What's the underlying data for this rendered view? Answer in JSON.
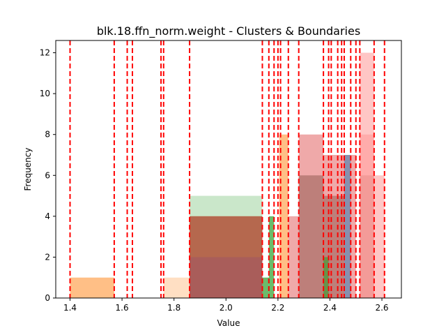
{
  "chart_data": {
    "type": "bar",
    "title": "blk.18.ffn_norm.weight - Clusters & Boundaries",
    "xlabel": "Value",
    "ylabel": "Frequency",
    "xlim": [
      1.345,
      2.675
    ],
    "ylim": [
      0,
      12.6
    ],
    "xticks": [
      "1.4",
      "1.6",
      "1.8",
      "2.0",
      "2.2",
      "2.4",
      "2.6"
    ],
    "yticks": [
      "0",
      "2",
      "4",
      "6",
      "8",
      "10",
      "12"
    ],
    "grid": false,
    "legend": "none",
    "boundary_color": "#ff0000",
    "boundaries": [
      1.4,
      1.57,
      1.62,
      1.64,
      1.75,
      1.76,
      1.86,
      2.14,
      2.165,
      2.185,
      2.2,
      2.21,
      2.24,
      2.28,
      2.375,
      2.395,
      2.405,
      2.43,
      2.445,
      2.455,
      2.48,
      2.5,
      2.515,
      2.57,
      2.61
    ],
    "series": [
      {
        "color": "#2ca02c",
        "opacity": 0.25,
        "bars": [
          {
            "x0": 1.86,
            "x1": 2.14,
            "y": 5
          }
        ]
      },
      {
        "color": "#ff7f0e",
        "opacity": 0.25,
        "bars": [
          {
            "x0": 1.76,
            "x1": 1.86,
            "y": 1
          }
        ]
      },
      {
        "color": "#ff7f0e",
        "opacity": 0.5,
        "bars": [
          {
            "x0": 1.4,
            "x1": 1.57,
            "y": 1
          },
          {
            "x0": 1.86,
            "x1": 2.14,
            "y": 4
          },
          {
            "x0": 2.205,
            "x1": 2.24,
            "y": 8
          }
        ]
      },
      {
        "color": "#2ca02c",
        "opacity": 0.7,
        "bars": [
          {
            "x0": 2.14,
            "x1": 2.165,
            "y": 1
          },
          {
            "x0": 2.165,
            "x1": 2.185,
            "y": 4
          }
        ]
      },
      {
        "color": "#9467bd",
        "opacity": 0.5,
        "bars": [
          {
            "x0": 1.86,
            "x1": 2.14,
            "y": 2
          }
        ]
      },
      {
        "color": "#d62728",
        "opacity": 0.4,
        "bars": [
          {
            "x0": 1.86,
            "x1": 2.14,
            "y": 4
          },
          {
            "x0": 2.24,
            "x1": 2.28,
            "y": 4
          },
          {
            "x0": 2.28,
            "x1": 2.375,
            "y": 8
          },
          {
            "x0": 2.375,
            "x1": 2.4,
            "y": 7
          },
          {
            "x0": 2.4,
            "x1": 2.43,
            "y": 7
          },
          {
            "x0": 2.43,
            "x1": 2.455,
            "y": 7
          },
          {
            "x0": 2.455,
            "x1": 2.5,
            "y": 7
          }
        ]
      },
      {
        "color": "#8c564b",
        "opacity": 0.5,
        "bars": [
          {
            "x0": 1.86,
            "x1": 2.14,
            "y": 4
          },
          {
            "x0": 2.28,
            "x1": 2.375,
            "y": 6
          },
          {
            "x0": 2.375,
            "x1": 2.43,
            "y": 5
          },
          {
            "x0": 2.43,
            "x1": 2.455,
            "y": 5
          },
          {
            "x0": 2.515,
            "x1": 2.57,
            "y": 6
          }
        ]
      },
      {
        "color": "#1f77b4",
        "opacity": 0.5,
        "bars": [
          {
            "x0": 2.455,
            "x1": 2.48,
            "y": 7
          }
        ]
      },
      {
        "color": "#2ca02c",
        "opacity": 0.6,
        "bars": [
          {
            "x0": 2.375,
            "x1": 2.395,
            "y": 2
          }
        ]
      },
      {
        "color": "#ff9896",
        "opacity": 0.55,
        "bars": [
          {
            "x0": 2.515,
            "x1": 2.57,
            "y": 12
          },
          {
            "x0": 2.515,
            "x1": 2.57,
            "y": 8
          },
          {
            "x0": 2.57,
            "x1": 2.61,
            "y": 6
          }
        ]
      }
    ]
  }
}
